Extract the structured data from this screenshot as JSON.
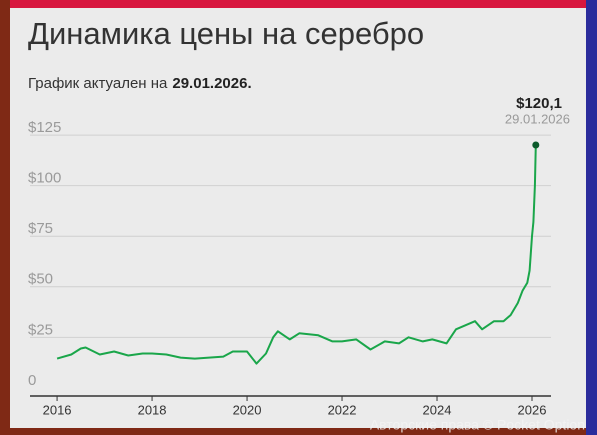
{
  "chart_data": {
    "type": "line",
    "title": "Динамика цены на серебро",
    "subtitle": {
      "text": "График актуален на",
      "date": "29.01.2026."
    },
    "annotation": {
      "date": "29.01.2026"
    },
    "watermark": "Авторские права © Pocket Option",
    "series": [
      {
        "name": "Серебро",
        "color": "#1aa64a",
        "x": [
          2016.0,
          2016.3,
          2016.5,
          2016.6,
          2016.9,
          2017.2,
          2017.5,
          2017.8,
          2018.0,
          2018.3,
          2018.6,
          2018.9,
          2019.2,
          2019.5,
          2019.7,
          2020.0,
          2020.2,
          2020.4,
          2020.55,
          2020.65,
          2020.9,
          2021.1,
          2021.5,
          2021.8,
          2022.0,
          2022.3,
          2022.6,
          2022.9,
          2023.2,
          2023.4,
          2023.7,
          2023.9,
          2024.2,
          2024.4,
          2024.8,
          2024.95,
          2025.2,
          2025.4,
          2025.55,
          2025.7,
          2025.8,
          2025.9,
          2025.95,
          2026.0,
          2026.03,
          2026.06,
          2026.08
        ],
        "values": [
          14.5,
          16.5,
          19.5,
          20,
          16.5,
          18,
          16,
          17,
          17,
          16.5,
          15,
          14.5,
          15,
          15.5,
          18,
          18,
          12,
          17,
          25,
          28,
          24,
          27,
          26,
          23,
          23,
          24,
          19,
          23,
          22,
          25,
          23,
          24,
          22,
          29,
          33,
          29,
          33,
          33,
          36,
          42,
          48,
          52,
          58,
          75,
          82,
          100,
          120.1
        ],
        "value_labels": [
          null,
          null,
          null,
          null,
          null,
          null,
          null,
          null,
          null,
          null,
          null,
          null,
          null,
          null,
          null,
          null,
          null,
          null,
          null,
          null,
          null,
          null,
          null,
          null,
          null,
          null,
          null,
          null,
          null,
          null,
          null,
          null,
          null,
          null,
          null,
          null,
          null,
          null,
          null,
          null,
          null,
          null,
          null,
          null,
          null,
          null,
          "$120,1"
        ],
        "end_color": "#0b5a2b"
      }
    ],
    "xlim": [
      2015.43,
      2026.4
    ],
    "xticks": [
      2016,
      2018,
      2020,
      2022,
      2024,
      2026
    ],
    "ylim": [
      -4,
      128
    ],
    "yticks": [
      0,
      {
        "value": 25,
        "label": "$25"
      },
      {
        "value": 50,
        "label": "$50"
      },
      {
        "value": 75,
        "label": "$75"
      },
      {
        "value": 100,
        "label": "$100"
      },
      {
        "value": 125,
        "label": "$125"
      }
    ],
    "grid": true
  }
}
